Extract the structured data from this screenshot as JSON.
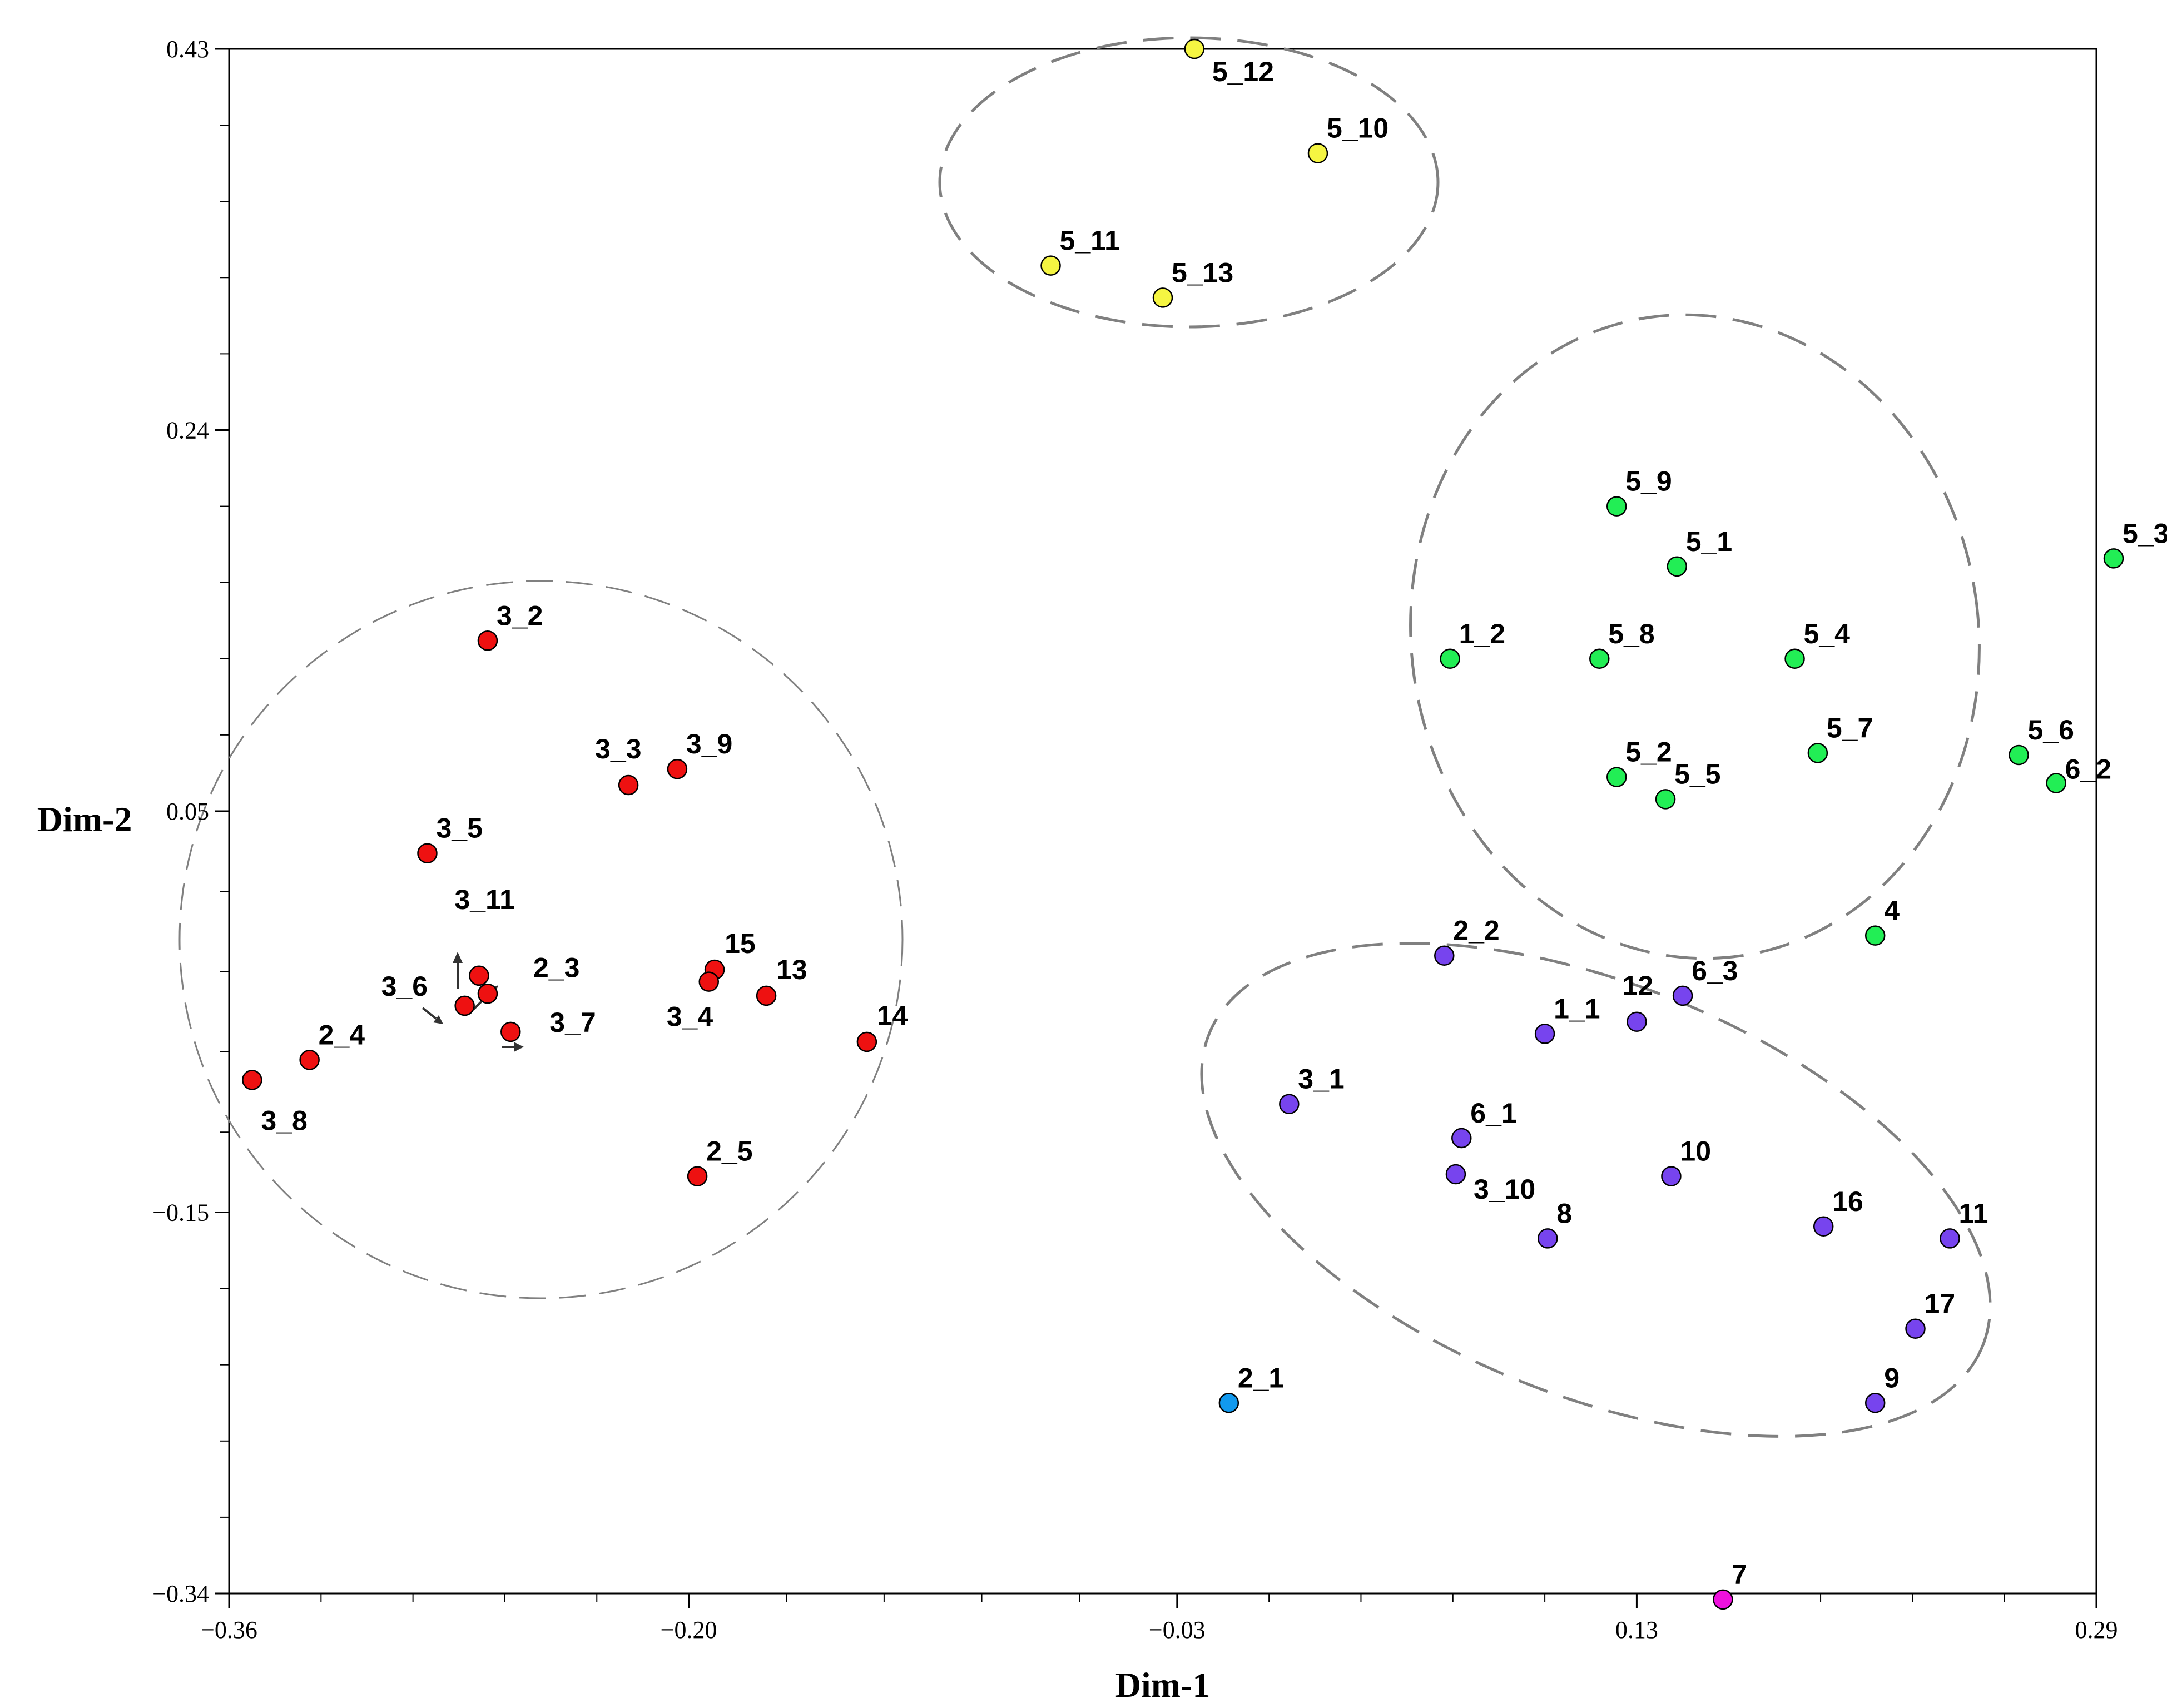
{
  "chart_data": {
    "type": "scatter",
    "xlabel": "Dim-1",
    "ylabel": "Dim-2",
    "xlim": [
      -0.36,
      0.29
    ],
    "ylim": [
      -0.34,
      0.43
    ],
    "xticks": [
      {
        "value": -0.36,
        "label": "−0.36"
      },
      {
        "value": -0.2,
        "label": "−0.20"
      },
      {
        "value": -0.03,
        "label": "−0.03"
      },
      {
        "value": 0.13,
        "label": "0.13"
      },
      {
        "value": 0.29,
        "label": "0.29"
      }
    ],
    "yticks": [
      {
        "value": 0.43,
        "label": "0.43"
      },
      {
        "value": 0.24,
        "label": "0.24"
      },
      {
        "value": 0.05,
        "label": "0.05"
      },
      {
        "value": -0.15,
        "label": "−0.15"
      },
      {
        "value": -0.34,
        "label": "−0.34"
      }
    ],
    "colors": {
      "red": "#ee1111",
      "yellow": "#f5f542",
      "green": "#22ee55",
      "purple": "#7744ee",
      "blue": "#1199ee",
      "magenta": "#ee11dd",
      "outline": "#000000",
      "cluster": "#808080"
    },
    "points": [
      {
        "label": "5_12",
        "x": -0.024,
        "y": 0.43,
        "color": "yellow"
      },
      {
        "label": "5_10",
        "x": 0.019,
        "y": 0.378,
        "color": "yellow"
      },
      {
        "label": "5_11",
        "x": -0.074,
        "y": 0.322,
        "color": "yellow"
      },
      {
        "label": "5_13",
        "x": -0.035,
        "y": 0.306,
        "color": "yellow"
      },
      {
        "label": "5_9",
        "x": 0.123,
        "y": 0.202,
        "color": "green"
      },
      {
        "label": "5_1",
        "x": 0.144,
        "y": 0.172,
        "color": "green"
      },
      {
        "label": "5_3",
        "x": 0.296,
        "y": 0.176,
        "color": "green"
      },
      {
        "label": "1_2",
        "x": 0.065,
        "y": 0.126,
        "color": "green"
      },
      {
        "label": "5_8",
        "x": 0.117,
        "y": 0.126,
        "color": "green"
      },
      {
        "label": "5_4",
        "x": 0.185,
        "y": 0.126,
        "color": "green"
      },
      {
        "label": "5_7",
        "x": 0.193,
        "y": 0.079,
        "color": "green"
      },
      {
        "label": "5_6",
        "x": 0.263,
        "y": 0.078,
        "color": "green"
      },
      {
        "label": "6_2",
        "x": 0.276,
        "y": 0.064,
        "color": "green"
      },
      {
        "label": "5_2",
        "x": 0.123,
        "y": 0.067,
        "color": "green"
      },
      {
        "label": "5_5",
        "x": 0.14,
        "y": 0.056,
        "color": "green"
      },
      {
        "label": "4",
        "x": 0.213,
        "y": -0.012,
        "color": "green"
      },
      {
        "label": "3_2",
        "x": -0.27,
        "y": 0.135,
        "color": "red"
      },
      {
        "label": "3_3",
        "x": -0.221,
        "y": 0.063,
        "color": "red"
      },
      {
        "label": "3_9",
        "x": -0.204,
        "y": 0.071,
        "color": "red"
      },
      {
        "label": "3_5",
        "x": -0.291,
        "y": 0.029,
        "color": "red"
      },
      {
        "label": "3_11",
        "x": -0.273,
        "y": -0.032,
        "color": "red"
      },
      {
        "label": "2_3",
        "x": -0.27,
        "y": -0.041,
        "color": "red"
      },
      {
        "label": "3_6",
        "x": -0.278,
        "y": -0.047,
        "color": "red"
      },
      {
        "label": "3_7",
        "x": -0.262,
        "y": -0.06,
        "color": "red"
      },
      {
        "label": "15",
        "x": -0.191,
        "y": -0.029,
        "color": "red"
      },
      {
        "label": "3_4",
        "x": -0.193,
        "y": -0.035,
        "color": "red"
      },
      {
        "label": "13",
        "x": -0.173,
        "y": -0.042,
        "color": "red"
      },
      {
        "label": "14",
        "x": -0.138,
        "y": -0.065,
        "color": "red"
      },
      {
        "label": "2_4",
        "x": -0.332,
        "y": -0.074,
        "color": "red"
      },
      {
        "label": "3_8",
        "x": -0.352,
        "y": -0.084,
        "color": "red"
      },
      {
        "label": "2_5",
        "x": -0.197,
        "y": -0.132,
        "color": "red"
      },
      {
        "label": "2_2",
        "x": 0.063,
        "y": -0.022,
        "color": "purple"
      },
      {
        "label": "6_3",
        "x": 0.146,
        "y": -0.042,
        "color": "purple"
      },
      {
        "label": "12",
        "x": 0.13,
        "y": -0.055,
        "color": "purple"
      },
      {
        "label": "1_1",
        "x": 0.098,
        "y": -0.061,
        "color": "purple"
      },
      {
        "label": "3_1",
        "x": 0.009,
        "y": -0.096,
        "color": "purple"
      },
      {
        "label": "6_1",
        "x": 0.069,
        "y": -0.113,
        "color": "purple"
      },
      {
        "label": "3_10",
        "x": 0.067,
        "y": -0.131,
        "color": "purple"
      },
      {
        "label": "10",
        "x": 0.142,
        "y": -0.132,
        "color": "purple"
      },
      {
        "label": "16",
        "x": 0.195,
        "y": -0.157,
        "color": "purple"
      },
      {
        "label": "8",
        "x": 0.099,
        "y": -0.163,
        "color": "purple"
      },
      {
        "label": "11",
        "x": 0.239,
        "y": -0.163,
        "color": "purple"
      },
      {
        "label": "17",
        "x": 0.227,
        "y": -0.208,
        "color": "purple"
      },
      {
        "label": "9",
        "x": 0.213,
        "y": -0.245,
        "color": "purple"
      },
      {
        "label": "2_1",
        "x": -0.012,
        "y": -0.245,
        "color": "blue"
      },
      {
        "label": "7",
        "x": 0.16,
        "y": -0.343,
        "color": "magenta"
      }
    ]
  }
}
